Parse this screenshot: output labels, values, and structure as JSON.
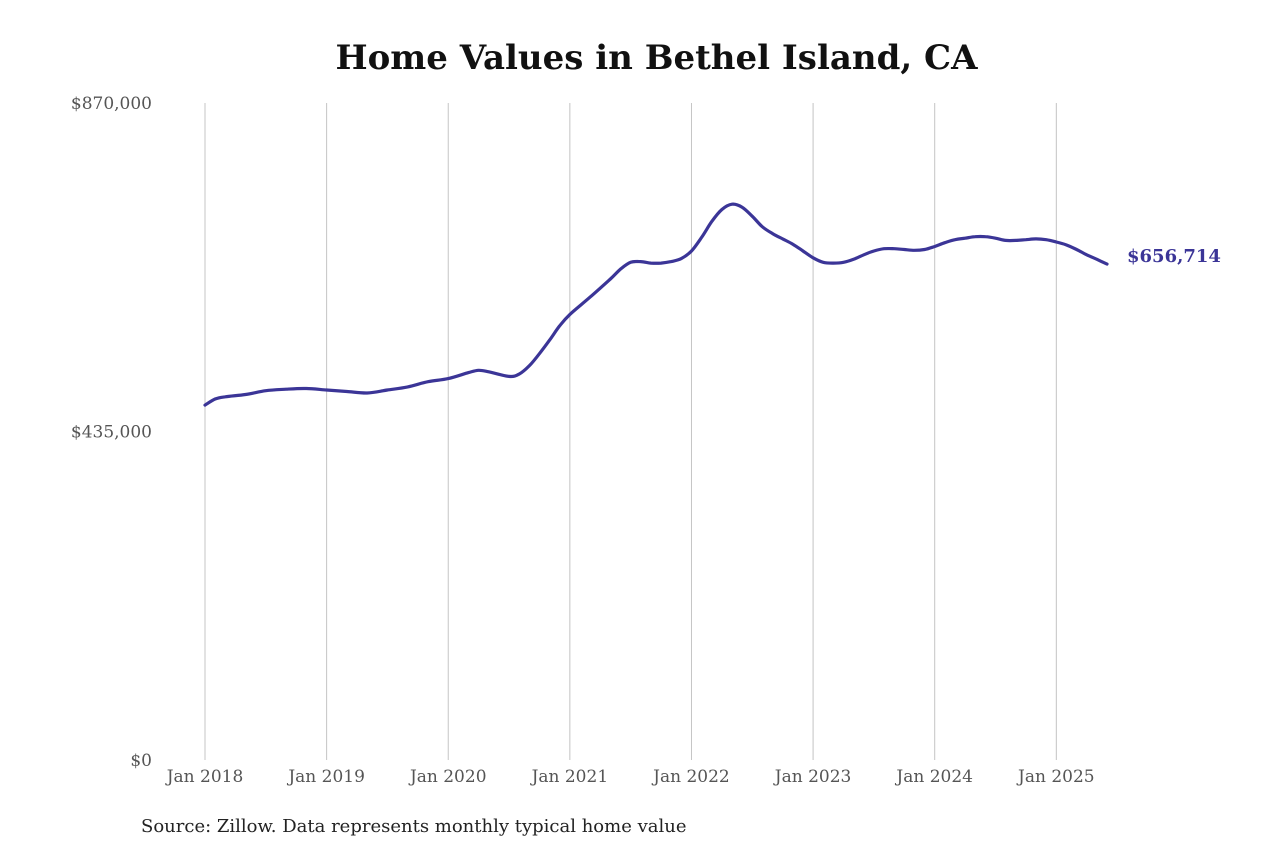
{
  "chart_data": {
    "type": "line",
    "title": "Home Values in Bethel Island, CA",
    "source": "Source: Zillow. Data represents monthly typical home value",
    "ylim": [
      0,
      870000
    ],
    "y_ticks": [
      {
        "value": 870000,
        "label": "$870,000"
      },
      {
        "value": 435000,
        "label": "$435,000"
      },
      {
        "value": 0,
        "label": "$0"
      }
    ],
    "xlim": [
      2018.0,
      2025.4167
    ],
    "x_ticks": [
      {
        "value": 2018,
        "label": "Jan 2018"
      },
      {
        "value": 2019,
        "label": "Jan 2019"
      },
      {
        "value": 2020,
        "label": "Jan 2020"
      },
      {
        "value": 2021,
        "label": "Jan 2021"
      },
      {
        "value": 2022,
        "label": "Jan 2022"
      },
      {
        "value": 2023,
        "label": "Jan 2023"
      },
      {
        "value": 2024,
        "label": "Jan 2024"
      },
      {
        "value": 2025,
        "label": "Jan 2025"
      }
    ],
    "grid": "vertical",
    "line_color": "#3b3597",
    "end_label": "$656,714",
    "series": [
      {
        "x": [
          2018.0,
          2018.0833,
          2018.1667,
          2018.3333,
          2018.5,
          2018.6667,
          2018.8333,
          2019.0,
          2019.1667,
          2019.3333,
          2019.5,
          2019.6667,
          2019.8333,
          2020.0,
          2020.1667,
          2020.25,
          2020.3333,
          2020.5,
          2020.5833,
          2020.6667,
          2020.75,
          2020.8333,
          2020.9167,
          2021.0,
          2021.1667,
          2021.3333,
          2021.4167,
          2021.5,
          2021.5833,
          2021.6667,
          2021.75,
          2021.8333,
          2021.9167,
          2022.0,
          2022.0833,
          2022.1667,
          2022.25,
          2022.3333,
          2022.4167,
          2022.5,
          2022.5833,
          2022.6667,
          2022.75,
          2022.8333,
          2022.9167,
          2023.0,
          2023.0833,
          2023.1667,
          2023.25,
          2023.3333,
          2023.4167,
          2023.5,
          2023.5833,
          2023.6667,
          2023.75,
          2023.8333,
          2023.9167,
          2024.0,
          2024.0833,
          2024.1667,
          2024.25,
          2024.3333,
          2024.4167,
          2024.5,
          2024.5833,
          2024.6667,
          2024.75,
          2024.8333,
          2024.9167,
          2025.0,
          2025.0833,
          2025.1667,
          2025.25,
          2025.3333,
          2025.4167
        ],
        "values": [
          470000,
          478000,
          481000,
          484000,
          489000,
          491000,
          492000,
          490000,
          488000,
          486000,
          490000,
          494000,
          501000,
          505000,
          513000,
          516000,
          514000,
          508000,
          511000,
          522000,
          538000,
          556000,
          575000,
          590000,
          613000,
          637000,
          650000,
          659000,
          660000,
          658000,
          658000,
          660000,
          664000,
          674000,
          692000,
          713000,
          729000,
          736000,
          732000,
          720000,
          706000,
          697000,
          690000,
          683000,
          674000,
          665000,
          659000,
          658000,
          659000,
          663000,
          669000,
          674000,
          677000,
          677000,
          676000,
          675000,
          676000,
          680000,
          685000,
          689000,
          691000,
          693000,
          693000,
          691000,
          688000,
          688000,
          689000,
          690000,
          689000,
          686000,
          682000,
          676000,
          669000,
          663000,
          656714
        ]
      }
    ]
  }
}
